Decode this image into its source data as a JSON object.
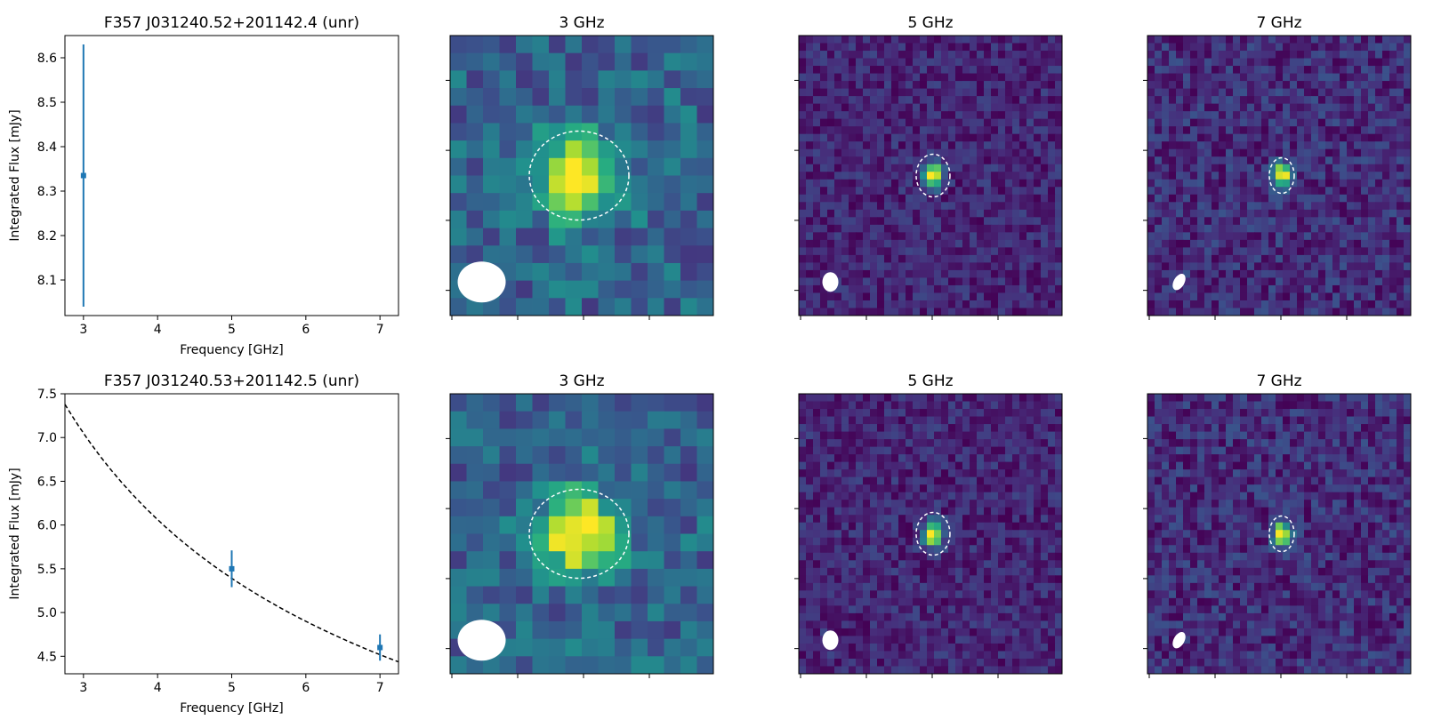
{
  "chart_data": [
    {
      "type": "scatter",
      "title": "F357 J031240.52+201142.4 (unr)",
      "xlabel": "Frequency [GHz]",
      "ylabel": "Integrated Flux [mJy]",
      "xlim": [
        2.75,
        7.25
      ],
      "ylim": [
        8.02,
        8.65
      ],
      "xticks": [
        "3",
        "4",
        "5",
        "6",
        "7"
      ],
      "yticks": [
        "8.1",
        "8.2",
        "8.3",
        "8.4",
        "8.5",
        "8.6"
      ],
      "series": [
        {
          "color": "#1f77b4",
          "points": [
            {
              "x": 3,
              "y": 8.335,
              "yerr": 0.295
            }
          ]
        }
      ],
      "fit": null
    },
    {
      "type": "image",
      "title": "3 GHz",
      "colormap": "viridis",
      "source_ellipse": {
        "style": "dashed",
        "color": "#ffffff"
      },
      "beam": {
        "color": "#ffffff"
      }
    },
    {
      "type": "image",
      "title": "5 GHz",
      "colormap": "viridis",
      "source_ellipse": {
        "style": "dashed",
        "color": "#ffffff"
      },
      "beam": {
        "color": "#ffffff"
      }
    },
    {
      "type": "image",
      "title": "7 GHz",
      "colormap": "viridis",
      "source_ellipse": {
        "style": "dashed",
        "color": "#ffffff"
      },
      "beam": {
        "color": "#ffffff"
      }
    },
    {
      "type": "scatter",
      "title": "F357 J031240.53+201142.5 (unr)",
      "xlabel": "Frequency [GHz]",
      "ylabel": "Integrated Flux [mJy]",
      "xlim": [
        2.75,
        7.25
      ],
      "ylim": [
        4.3,
        7.5
      ],
      "xticks": [
        "3",
        "4",
        "5",
        "6",
        "7"
      ],
      "yticks": [
        "4.5",
        "5.0",
        "5.5",
        "6.0",
        "6.5",
        "7.0",
        "7.5"
      ],
      "series": [
        {
          "color": "#1f77b4",
          "points": [
            {
              "x": 5,
              "y": 5.5,
              "yerr": 0.21
            },
            {
              "x": 7,
              "y": 4.6,
              "yerr": 0.15
            }
          ]
        }
      ],
      "fit": {
        "style": "dashed",
        "color": "#000000",
        "amplitude": 7.05,
        "pivot": 3,
        "index": -0.525
      }
    },
    {
      "type": "image",
      "title": "3 GHz",
      "colormap": "viridis",
      "source_ellipse": {
        "style": "dashed",
        "color": "#ffffff"
      },
      "beam": {
        "color": "#ffffff"
      }
    },
    {
      "type": "image",
      "title": "5 GHz",
      "colormap": "viridis",
      "source_ellipse": {
        "style": "dashed",
        "color": "#ffffff"
      },
      "beam": {
        "color": "#ffffff"
      }
    },
    {
      "type": "image",
      "title": "7 GHz",
      "colormap": "viridis",
      "source_ellipse": {
        "style": "dashed",
        "color": "#ffffff"
      },
      "beam": {
        "color": "#ffffff"
      }
    }
  ]
}
